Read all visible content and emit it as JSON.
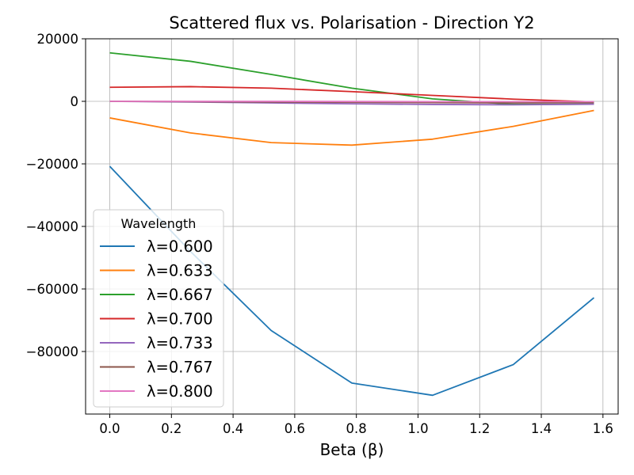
{
  "chart_data": {
    "type": "line",
    "title": "Scattered flux vs. Polarisation - Direction Y2",
    "xlabel": "Beta (β)",
    "ylabel": "",
    "xlim": [
      -0.0785,
      1.6493
    ],
    "ylim": [
      -100000,
      20000
    ],
    "xticks": [
      0.0,
      0.2,
      0.4,
      0.6,
      0.8,
      1.0,
      1.2,
      1.4,
      1.6
    ],
    "xtick_labels": [
      "0.0",
      "0.2",
      "0.4",
      "0.6",
      "0.8",
      "1.0",
      "1.2",
      "1.4",
      "1.6"
    ],
    "yticks": [
      -80000,
      -60000,
      -40000,
      -20000,
      0,
      20000
    ],
    "ytick_labels": [
      "−80000",
      "−60000",
      "−40000",
      "−20000",
      "0",
      "20000"
    ],
    "grid": true,
    "legend": {
      "title": "Wavelength",
      "placement": "center-left"
    },
    "x": [
      0.0,
      0.2618,
      0.5236,
      0.7854,
      1.0472,
      1.309,
      1.5708
    ],
    "series": [
      {
        "name": "λ=0.600",
        "color": "#1f77b4",
        "values": [
          -20800,
          -48000,
          -73300,
          -90100,
          -94000,
          -84200,
          -62800
        ]
      },
      {
        "name": "λ=0.633",
        "color": "#ff7f0e",
        "values": [
          -5300,
          -10100,
          -13200,
          -14000,
          -12100,
          -8000,
          -2900
        ]
      },
      {
        "name": "λ=0.667",
        "color": "#2ca02c",
        "values": [
          15500,
          12800,
          8600,
          4200,
          800,
          -1000,
          -900
        ]
      },
      {
        "name": "λ=0.700",
        "color": "#d62728",
        "values": [
          4500,
          4700,
          4200,
          3100,
          1900,
          700,
          -200
        ]
      },
      {
        "name": "λ=0.733",
        "color": "#9467bd",
        "values": [
          0,
          -200,
          -500,
          -800,
          -1000,
          -1100,
          -900
        ]
      },
      {
        "name": "λ=0.767",
        "color": "#8c564b",
        "values": [
          0,
          -100,
          -200,
          -300,
          -400,
          -500,
          -400
        ]
      },
      {
        "name": "λ=0.800",
        "color": "#e377c2",
        "values": [
          0,
          0,
          0,
          -50,
          -100,
          -100,
          -100
        ]
      }
    ]
  }
}
